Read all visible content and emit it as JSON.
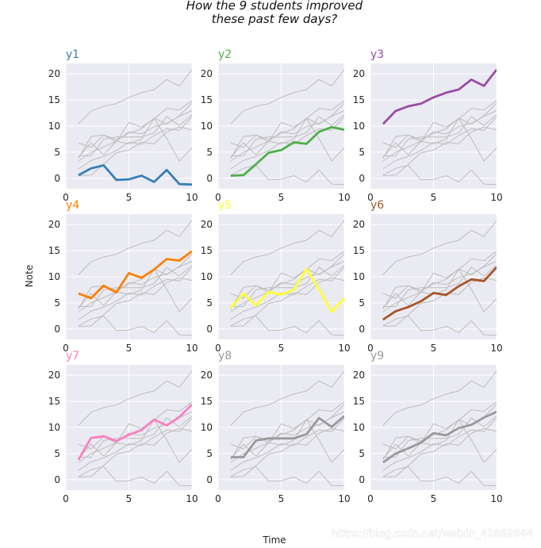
{
  "chart_data": {
    "type": "line",
    "title": "How the 9 students improved\nthese past few days?",
    "xlabel": "Time",
    "ylabel": "Note",
    "x": [
      1,
      2,
      3,
      4,
      5,
      6,
      7,
      8,
      9,
      10
    ],
    "xlim": [
      0,
      10
    ],
    "ylim": [
      -2,
      22
    ],
    "xticks": [
      "0",
      "5",
      "10"
    ],
    "yticks": [
      "0",
      "5",
      "10",
      "15",
      "20"
    ],
    "grid": true,
    "layout": "3x3 small multiples",
    "series": [
      {
        "name": "y1",
        "color": "#377eb8",
        "values": [
          0.6,
          1.9,
          2.5,
          -0.3,
          -0.2,
          0.5,
          -0.7,
          1.6,
          -1.1,
          -1.2
        ]
      },
      {
        "name": "y2",
        "color": "#4daf4a",
        "values": [
          0.5,
          0.6,
          2.7,
          4.9,
          5.4,
          6.9,
          6.6,
          8.9,
          9.8,
          9.3
        ]
      },
      {
        "name": "y3",
        "color": "#984ea3",
        "values": [
          10.4,
          12.9,
          13.8,
          14.3,
          15.5,
          16.4,
          17.0,
          18.9,
          17.7,
          20.8
        ]
      },
      {
        "name": "y4",
        "color": "#ff7f00",
        "values": [
          6.8,
          5.9,
          8.3,
          7.0,
          10.7,
          9.8,
          11.4,
          13.4,
          13.1,
          14.9
        ]
      },
      {
        "name": "y5",
        "color": "#ffff33",
        "values": [
          4.0,
          6.8,
          4.5,
          7.1,
          6.6,
          7.5,
          11.5,
          7.6,
          3.3,
          5.8
        ]
      },
      {
        "name": "y6",
        "color": "#a65628",
        "values": [
          1.8,
          3.4,
          4.2,
          5.3,
          6.9,
          6.5,
          8.2,
          9.5,
          9.2,
          11.8
        ]
      },
      {
        "name": "y7",
        "color": "#f781bf",
        "values": [
          3.8,
          8.0,
          8.3,
          7.4,
          8.6,
          9.5,
          11.5,
          10.4,
          12.0,
          14.4
        ]
      },
      {
        "name": "y8",
        "color": "#999999",
        "values": [
          4.3,
          4.3,
          7.5,
          7.9,
          7.9,
          7.9,
          8.7,
          11.8,
          10.1,
          12.2
        ]
      },
      {
        "name": "y9",
        "color": "#999999",
        "values": [
          3.3,
          5.0,
          6.0,
          7.1,
          8.9,
          8.5,
          9.9,
          10.5,
          11.9,
          13.0
        ]
      }
    ]
  },
  "watermark": "https://blog.csdn.net/weixin_41869644"
}
